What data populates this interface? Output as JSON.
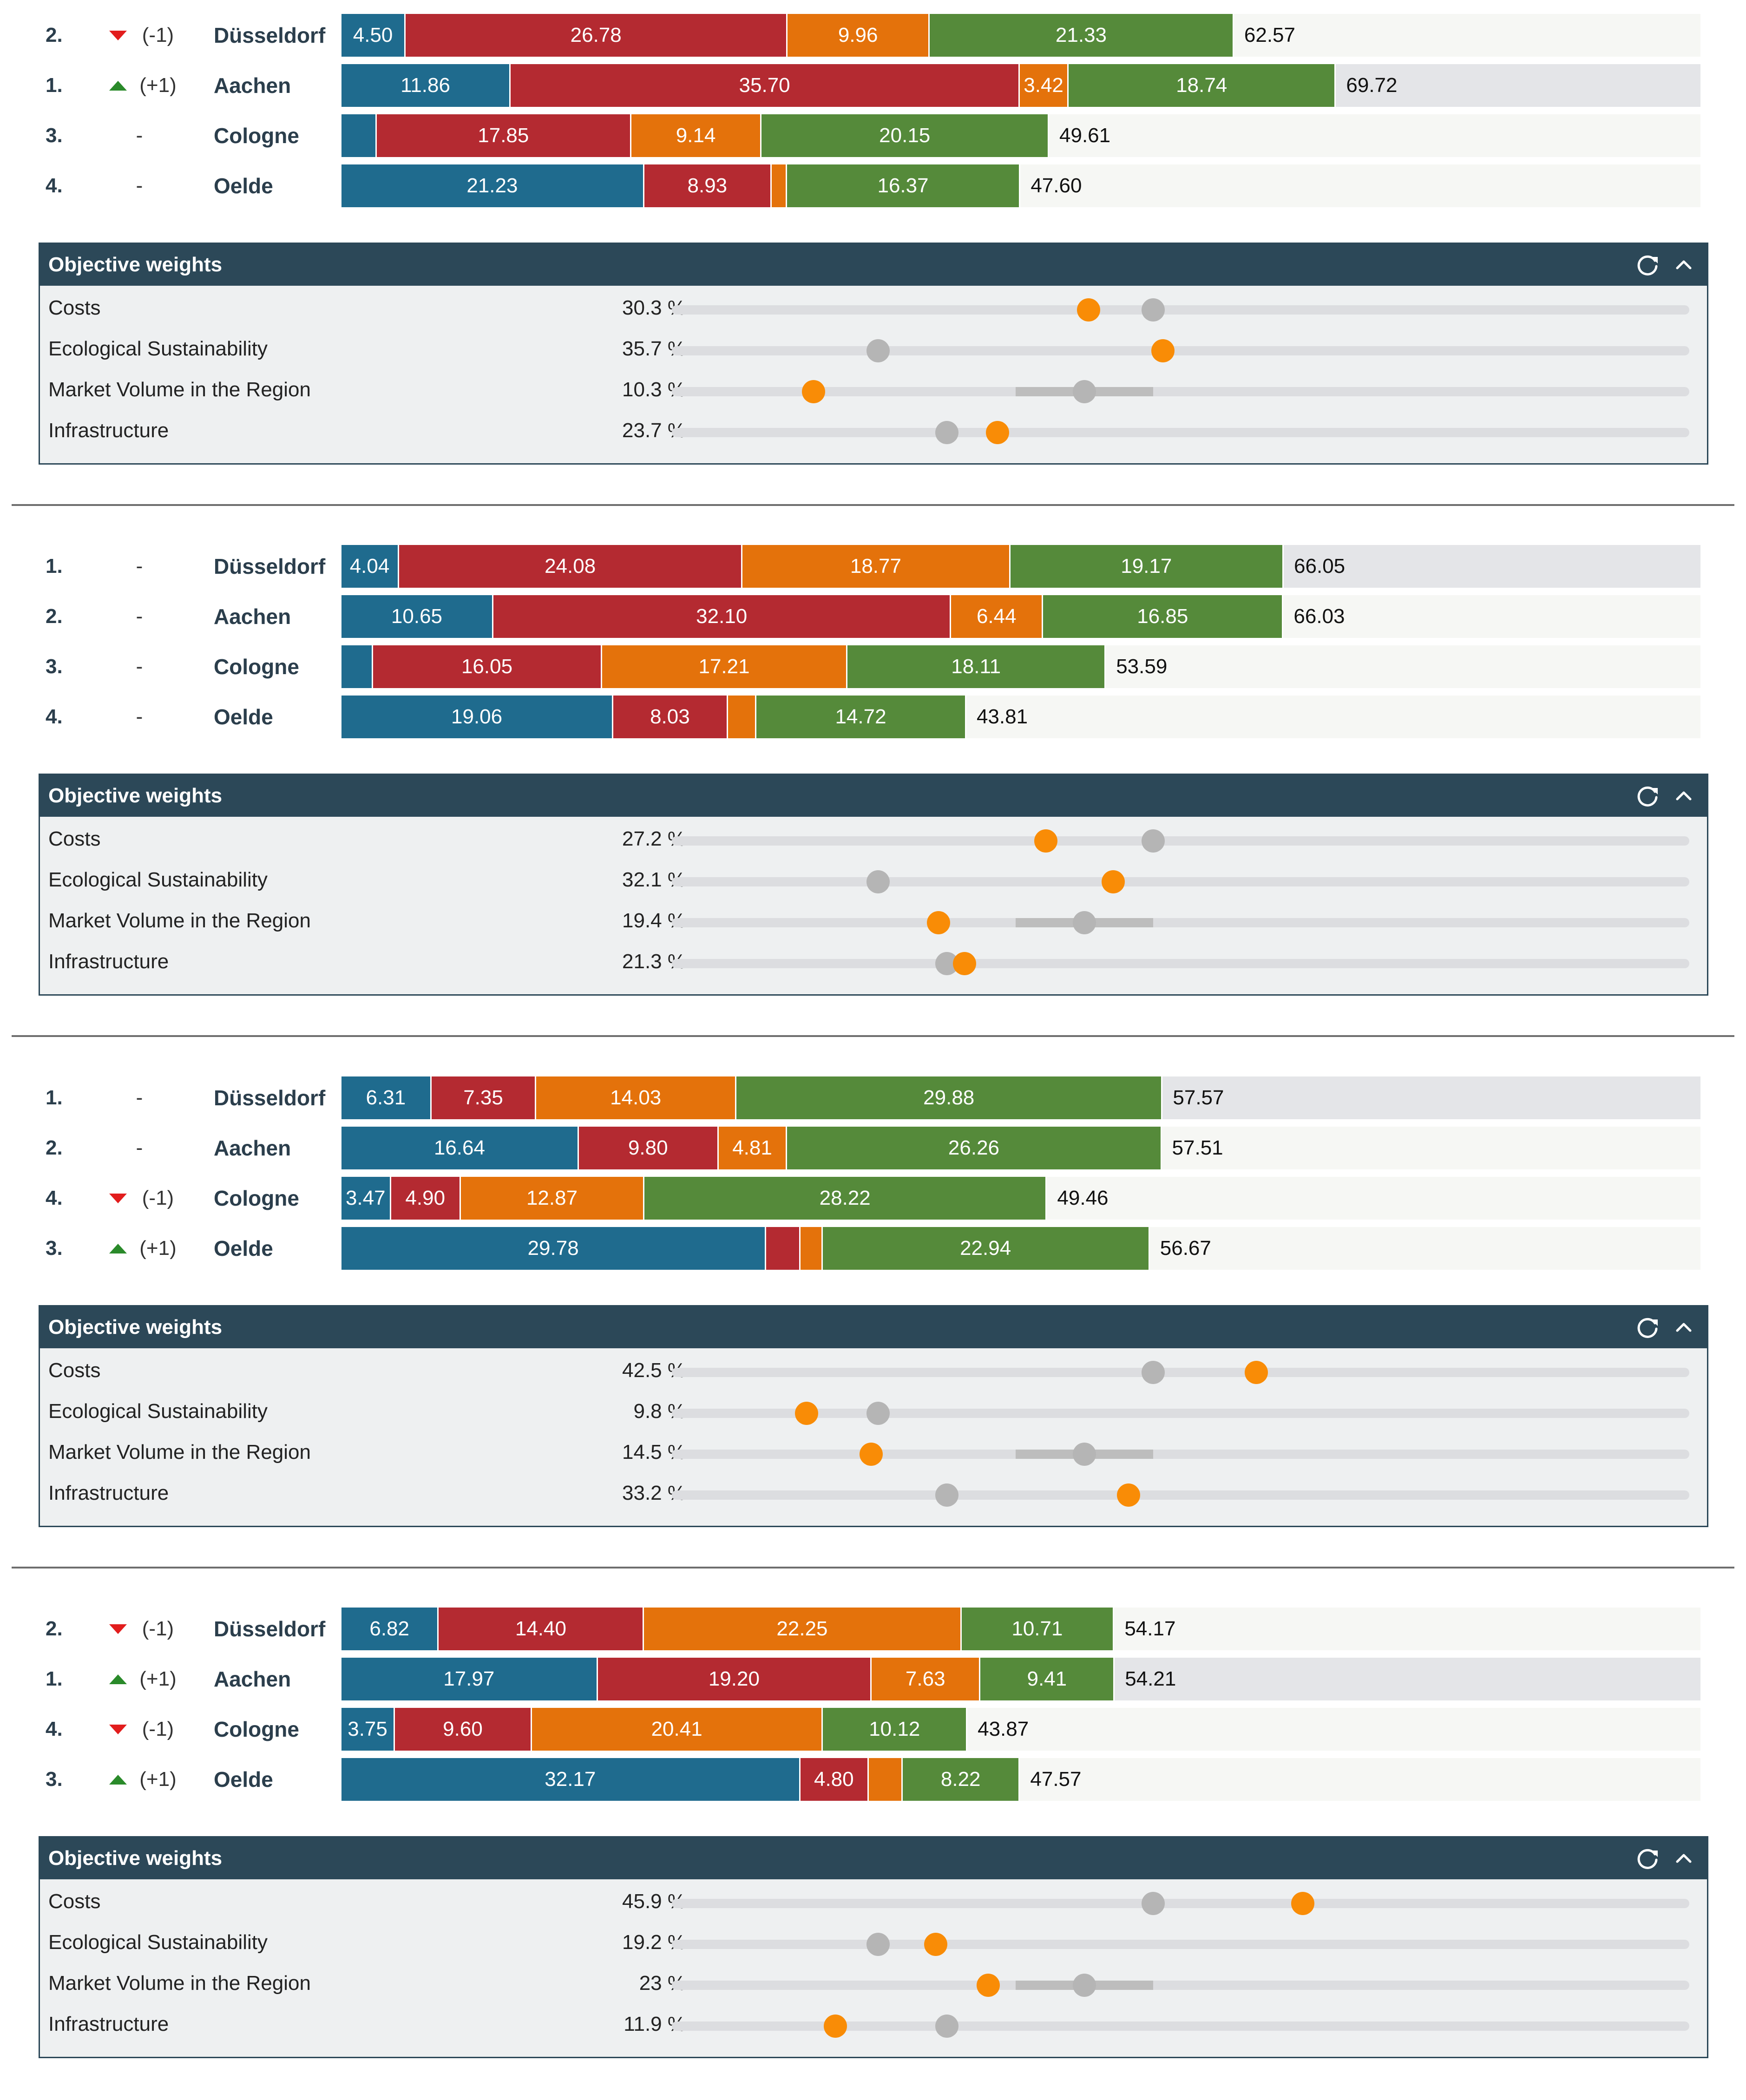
{
  "colors": {
    "costs": "#1f6b8e",
    "ecological": "#b42a31",
    "market": "#e4720b",
    "infrastructure": "#558a3a",
    "header": "#2c4858",
    "current_weight": "#f98c06",
    "reference_weight": "#b5b5b5"
  },
  "panel_title": "Objective weights",
  "icons": {
    "refresh": "refresh-icon",
    "collapse": "chevron-up-icon"
  },
  "objectives": [
    "Costs",
    "Ecological Sustainability",
    "Market Volume in the Region",
    "Infrastructure"
  ],
  "chart_data": {
    "type": "bar",
    "orientation": "horizontal-stacked",
    "series_order": [
      "Costs",
      "Ecological Sustainability",
      "Market Volume in the Region",
      "Infrastructure"
    ],
    "xlim": [
      0,
      100
    ],
    "weight_scale": [
      0,
      100
    ],
    "scenarios": [
      {
        "rows": [
          {
            "rank": "2.",
            "trend": "down",
            "change": "(-1)",
            "city": "Düsseldorf",
            "best": false,
            "values": [
              4.5,
              26.78,
              9.96,
              21.33
            ],
            "labels": [
              "4.50",
              "26.78",
              "9.96",
              "21.33"
            ],
            "total": "62.57"
          },
          {
            "rank": "1.",
            "trend": "up",
            "change": "(+1)",
            "city": "Aachen",
            "best": true,
            "values": [
              11.86,
              35.7,
              3.42,
              18.74
            ],
            "labels": [
              "11.86",
              "35.70",
              "3.42",
              "18.74"
            ],
            "total": "69.72"
          },
          {
            "rank": "3.",
            "trend": "none",
            "change": "-",
            "city": "Cologne",
            "best": false,
            "values": [
              2.47,
              17.85,
              9.14,
              20.15
            ],
            "labels": [
              "",
              "17.85",
              "9.14",
              "20.15"
            ],
            "total": "49.61"
          },
          {
            "rank": "4.",
            "trend": "none",
            "change": "-",
            "city": "Oelde",
            "best": false,
            "values": [
              21.23,
              8.93,
              1.07,
              16.37
            ],
            "labels": [
              "21.23",
              "8.93",
              "",
              "16.37"
            ],
            "total": "47.60"
          }
        ],
        "weights": [
          {
            "value": "30.3 %",
            "current": 30.3,
            "reference": 35
          },
          {
            "value": "35.7 %",
            "current": 35.7,
            "reference": 15
          },
          {
            "value": "10.3 %",
            "current": 10.3,
            "reference": 30,
            "range": [
              25,
              35
            ]
          },
          {
            "value": "23.7 %",
            "current": 23.7,
            "reference": 20
          }
        ]
      },
      {
        "rows": [
          {
            "rank": "1.",
            "trend": "none",
            "change": "-",
            "city": "Düsseldorf",
            "best": true,
            "values": [
              4.04,
              24.08,
              18.77,
              19.17
            ],
            "labels": [
              "4.04",
              "24.08",
              "18.77",
              "19.17"
            ],
            "total": "66.05"
          },
          {
            "rank": "2.",
            "trend": "none",
            "change": "-",
            "city": "Aachen",
            "best": false,
            "values": [
              10.65,
              32.1,
              6.44,
              16.85
            ],
            "labels": [
              "10.65",
              "32.10",
              "6.44",
              "16.85"
            ],
            "total": "66.03"
          },
          {
            "rank": "3.",
            "trend": "none",
            "change": "-",
            "city": "Cologne",
            "best": false,
            "values": [
              2.22,
              16.05,
              17.21,
              18.11
            ],
            "labels": [
              "",
              "16.05",
              "17.21",
              "18.11"
            ],
            "total": "53.59"
          },
          {
            "rank": "4.",
            "trend": "none",
            "change": "-",
            "city": "Oelde",
            "best": false,
            "values": [
              19.06,
              8.03,
              2.0,
              14.72
            ],
            "labels": [
              "19.06",
              "8.03",
              "",
              "14.72"
            ],
            "total": "43.81"
          }
        ],
        "weights": [
          {
            "value": "27.2 %",
            "current": 27.2,
            "reference": 35
          },
          {
            "value": "32.1 %",
            "current": 32.1,
            "reference": 15
          },
          {
            "value": "19.4 %",
            "current": 19.4,
            "reference": 30,
            "range": [
              25,
              35
            ]
          },
          {
            "value": "21.3 %",
            "current": 21.3,
            "reference": 20
          }
        ]
      },
      {
        "rows": [
          {
            "rank": "1.",
            "trend": "none",
            "change": "-",
            "city": "Düsseldorf",
            "best": true,
            "values": [
              6.31,
              7.35,
              14.03,
              29.88
            ],
            "labels": [
              "6.31",
              "7.35",
              "14.03",
              "29.88"
            ],
            "total": "57.57"
          },
          {
            "rank": "2.",
            "trend": "none",
            "change": "-",
            "city": "Aachen",
            "best": false,
            "values": [
              16.64,
              9.8,
              4.81,
              26.26
            ],
            "labels": [
              "16.64",
              "9.80",
              "4.81",
              "26.26"
            ],
            "total": "57.51"
          },
          {
            "rank": "4.",
            "trend": "down",
            "change": "(-1)",
            "city": "Cologne",
            "best": false,
            "values": [
              3.47,
              4.9,
              12.87,
              28.22
            ],
            "labels": [
              "3.47",
              "4.90",
              "12.87",
              "28.22"
            ],
            "total": "49.46"
          },
          {
            "rank": "3.",
            "trend": "up",
            "change": "(+1)",
            "city": "Oelde",
            "best": false,
            "values": [
              29.78,
              2.4,
              1.55,
              22.94
            ],
            "labels": [
              "29.78",
              "",
              "",
              "22.94"
            ],
            "total": "56.67"
          }
        ],
        "weights": [
          {
            "value": "42.5 %",
            "current": 42.5,
            "reference": 35
          },
          {
            "value": "9.8 %",
            "current": 9.8,
            "reference": 15
          },
          {
            "value": "14.5 %",
            "current": 14.5,
            "reference": 30,
            "range": [
              25,
              35
            ]
          },
          {
            "value": "33.2 %",
            "current": 33.2,
            "reference": 20
          }
        ]
      },
      {
        "rows": [
          {
            "rank": "2.",
            "trend": "down",
            "change": "(-1)",
            "city": "Düsseldorf",
            "best": false,
            "values": [
              6.82,
              14.4,
              22.25,
              10.71
            ],
            "labels": [
              "6.82",
              "14.40",
              "22.25",
              "10.71"
            ],
            "total": "54.17"
          },
          {
            "rank": "1.",
            "trend": "up",
            "change": "(+1)",
            "city": "Aachen",
            "best": true,
            "values": [
              17.97,
              19.2,
              7.63,
              9.41
            ],
            "labels": [
              "17.97",
              "19.20",
              "7.63",
              "9.41"
            ],
            "total": "54.21"
          },
          {
            "rank": "4.",
            "trend": "down",
            "change": "(-1)",
            "city": "Cologne",
            "best": false,
            "values": [
              3.75,
              9.6,
              20.41,
              10.12
            ],
            "labels": [
              "3.75",
              "9.60",
              "20.41",
              "10.12"
            ],
            "total": "43.87"
          },
          {
            "rank": "3.",
            "trend": "up",
            "change": "(+1)",
            "city": "Oelde",
            "best": false,
            "values": [
              32.17,
              4.8,
              2.38,
              8.22
            ],
            "labels": [
              "32.17",
              "4.80",
              "",
              "8.22"
            ],
            "total": "47.57"
          }
        ],
        "weights": [
          {
            "value": "45.9 %",
            "current": 45.9,
            "reference": 35
          },
          {
            "value": "19.2 %",
            "current": 19.2,
            "reference": 15
          },
          {
            "value": "23 %",
            "current": 23,
            "reference": 30,
            "range": [
              25,
              35
            ]
          },
          {
            "value": "11.9 %",
            "current": 11.9,
            "reference": 20
          }
        ]
      }
    ]
  }
}
